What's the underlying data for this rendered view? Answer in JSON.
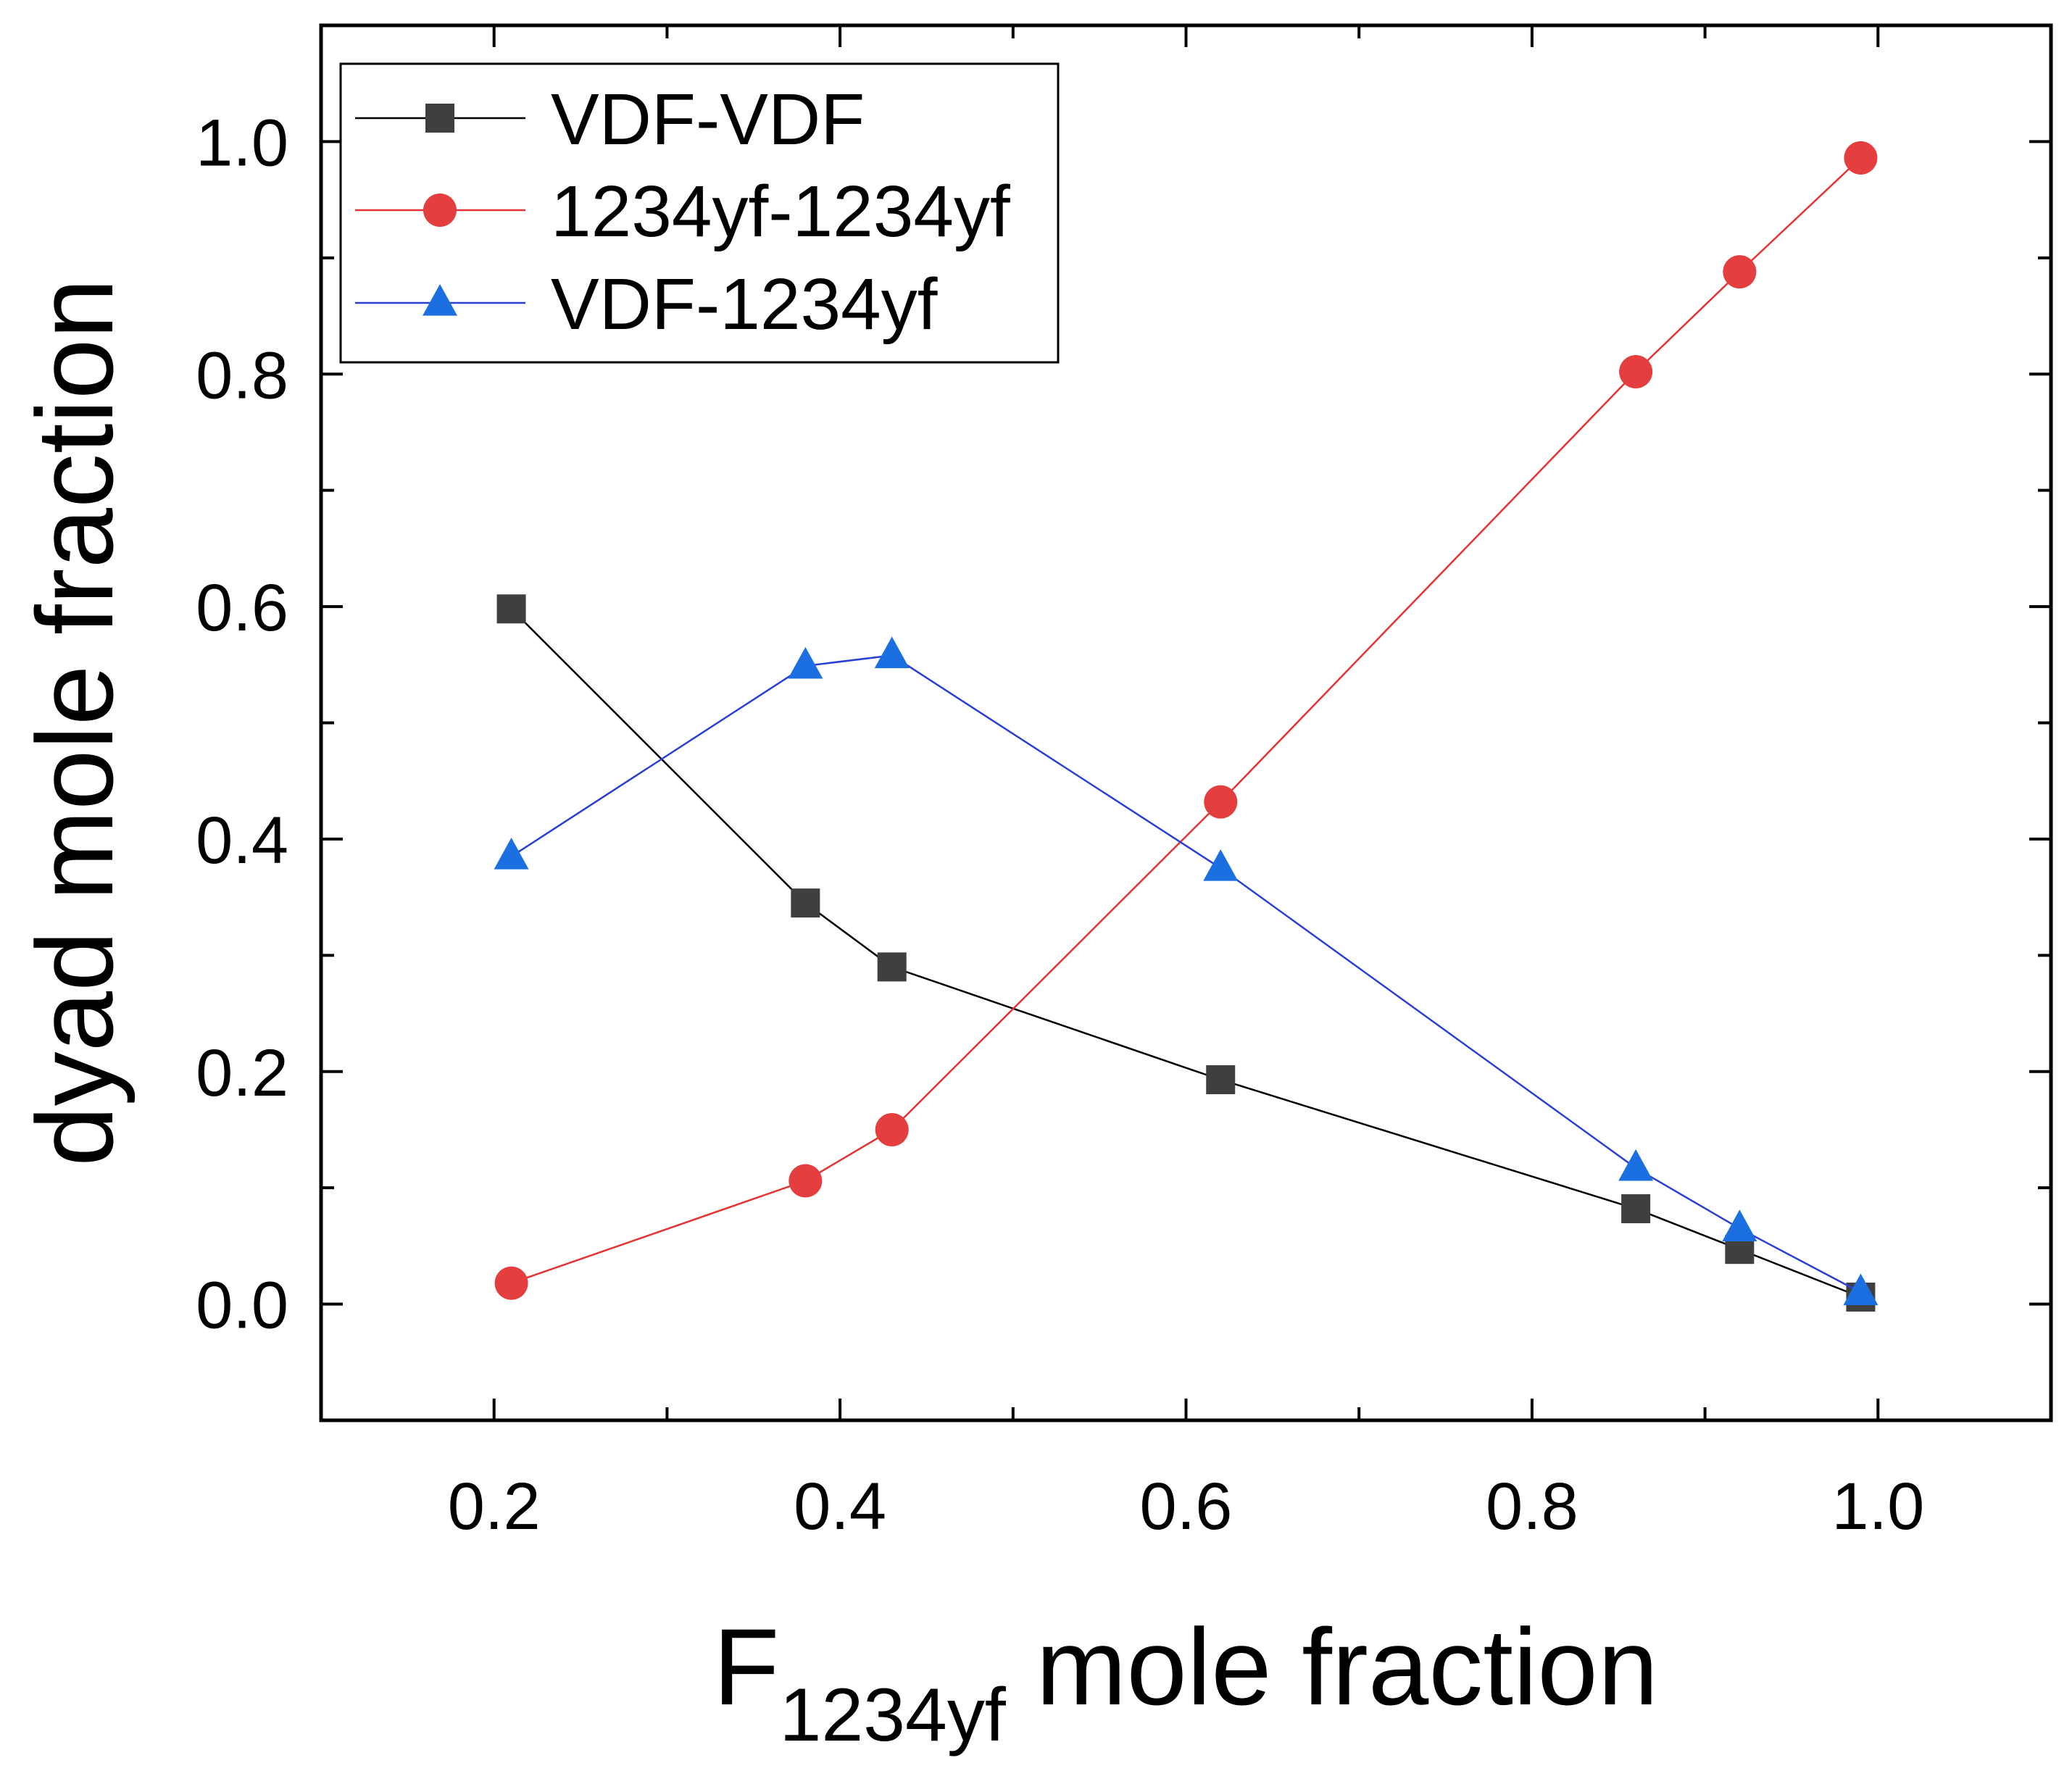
{
  "chart_data": {
    "type": "line",
    "title": "",
    "xlabel": {
      "main": "F",
      "subscript": "1234yf",
      "suffix": " mole fraction"
    },
    "ylabel": "dyad mole fraction",
    "xlim": [
      0.1,
      1.1
    ],
    "ylim": [
      -0.1,
      1.1
    ],
    "x_ticks": [
      "0.2",
      "0.4",
      "0.6",
      "0.8",
      "1.0"
    ],
    "y_ticks": [
      "0.0",
      "0.2",
      "0.4",
      "0.6",
      "0.8",
      "1.0"
    ],
    "legend_position": "top-left",
    "series": [
      {
        "name": "VDF-VDF",
        "marker": "square",
        "color": "#000000",
        "marker_color": "#3f3f3f",
        "x": [
          0.21,
          0.38,
          0.43,
          0.62,
          0.86,
          0.92,
          0.99
        ],
        "y": [
          0.598,
          0.345,
          0.29,
          0.193,
          0.082,
          0.047,
          0.006
        ]
      },
      {
        "name": "1234yf-1234yf",
        "marker": "circle",
        "color": "#e53333",
        "marker_color": "#e53e3e",
        "x": [
          0.21,
          0.38,
          0.43,
          0.62,
          0.86,
          0.92,
          0.99
        ],
        "y": [
          0.018,
          0.106,
          0.15,
          0.432,
          0.802,
          0.888,
          0.986
        ]
      },
      {
        "name": "VDF-1234yf",
        "marker": "triangle",
        "color": "#2a3fd6",
        "marker_color": "#1c6fe0",
        "x": [
          0.21,
          0.38,
          0.43,
          0.62,
          0.86,
          0.92,
          0.99
        ],
        "y": [
          0.385,
          0.549,
          0.558,
          0.375,
          0.117,
          0.065,
          0.01
        ]
      }
    ]
  }
}
